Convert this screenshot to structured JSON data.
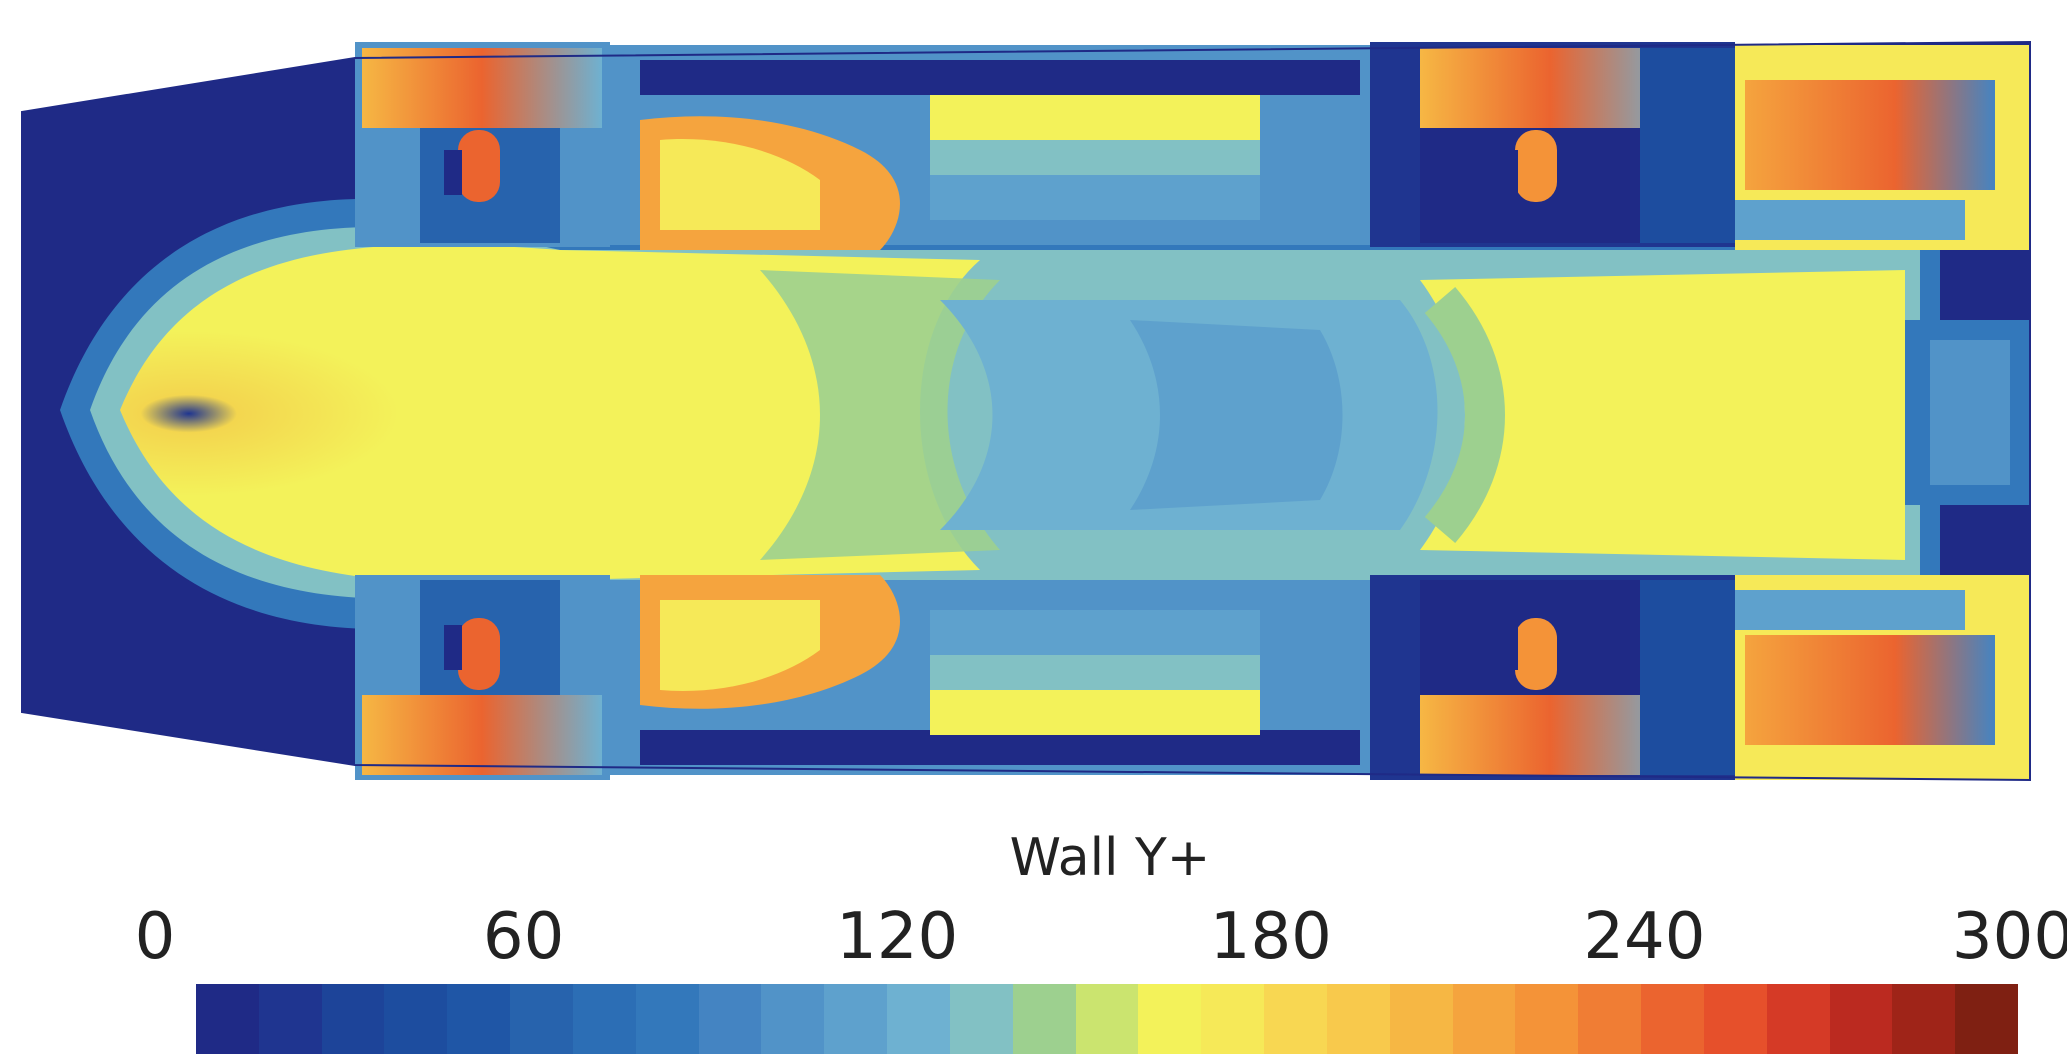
{
  "legend": {
    "title": "Wall Y+",
    "ticks": [
      "0",
      "60",
      "120",
      "180",
      "240",
      "300"
    ],
    "min": 0,
    "max": 300,
    "colors": [
      "#1f2a86",
      "#1f3590",
      "#1d4499",
      "#1d4d9f",
      "#1f56a6",
      "#2763ad",
      "#2c6eb5",
      "#3378bb",
      "#4484c2",
      "#5193c8",
      "#5ea1cd",
      "#6eb1d1",
      "#82c1c4",
      "#9dd08f",
      "#cbe46f",
      "#f3f25a",
      "#f6e958",
      "#f8d752",
      "#f8c94c",
      "#f6b744",
      "#f5a43e",
      "#f49338",
      "#f07d34",
      "#eb642f",
      "#e6502b",
      "#d53a26",
      "#bb2a20",
      "#9f2418",
      "#7f2012"
    ]
  }
}
